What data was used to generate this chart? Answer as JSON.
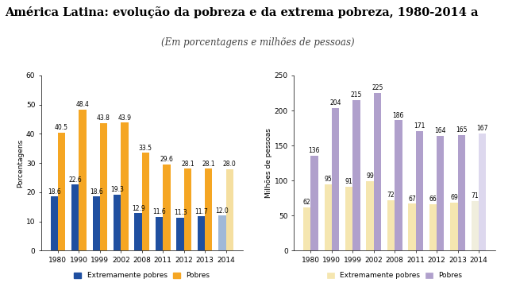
{
  "title": "América Latina: evolução da pobreza e da extrema pobreza, 1980-2014 a",
  "subtitle": "(Em porcentagens e milhões de pessoas)",
  "years": [
    "1980",
    "1990",
    "1999",
    "2002",
    "2008",
    "2011",
    "2012",
    "2013",
    "2014"
  ],
  "left_ylabel": "Porcentagens",
  "right_ylabel": "Milhões de pessoas",
  "left_extreme": [
    18.6,
    22.6,
    18.6,
    19.3,
    12.9,
    11.6,
    11.3,
    11.7,
    12.0
  ],
  "left_poor": [
    40.5,
    48.4,
    43.8,
    43.9,
    33.5,
    29.6,
    28.1,
    28.1,
    28.0
  ],
  "right_extreme": [
    62,
    95,
    91,
    99,
    72,
    67,
    66,
    69,
    71
  ],
  "right_poor": [
    136,
    204,
    215,
    225,
    186,
    171,
    164,
    165,
    167
  ],
  "left_extreme_colors": [
    "#1f4fa0",
    "#1f4fa0",
    "#1f4fa0",
    "#1f4fa0",
    "#1f4fa0",
    "#1f4fa0",
    "#1f4fa0",
    "#1f4fa0",
    "#a0b8d8"
  ],
  "left_poor_colors": [
    "#f5a623",
    "#f5a623",
    "#f5a623",
    "#f5a623",
    "#f5a623",
    "#f5a623",
    "#f5a623",
    "#f5a623",
    "#f5dfa0"
  ],
  "right_extreme_colors": [
    "#f5e6b0",
    "#f5e6b0",
    "#f5e6b0",
    "#f5e6b0",
    "#f5e6b0",
    "#f5e6b0",
    "#f5e6b0",
    "#f5e6b0",
    "#f0eedd"
  ],
  "right_poor_colors": [
    "#b0a0cc",
    "#b0a0cc",
    "#b0a0cc",
    "#b0a0cc",
    "#b0a0cc",
    "#b0a0cc",
    "#b0a0cc",
    "#b0a0cc",
    "#ddd8ee"
  ],
  "left_extreme_color": "#1f4fa0",
  "left_poor_color": "#f5a623",
  "right_extreme_color": "#f5e6b0",
  "right_poor_color": "#b0a0cc",
  "left_ylim": [
    0,
    60
  ],
  "left_yticks": [
    0,
    10,
    20,
    30,
    40,
    50,
    60
  ],
  "right_ylim": [
    0,
    250
  ],
  "right_yticks": [
    0,
    50,
    100,
    150,
    200,
    250
  ],
  "legend_left_labels": [
    "Extremamente pobres",
    "Pobres"
  ],
  "legend_right_labels": [
    "Extremamente pobres",
    "Pobres"
  ],
  "bar_width": 0.35,
  "label_fontsize": 5.5,
  "tick_fontsize": 6.5,
  "title_fontsize": 10.5,
  "subtitle_fontsize": 8.5
}
